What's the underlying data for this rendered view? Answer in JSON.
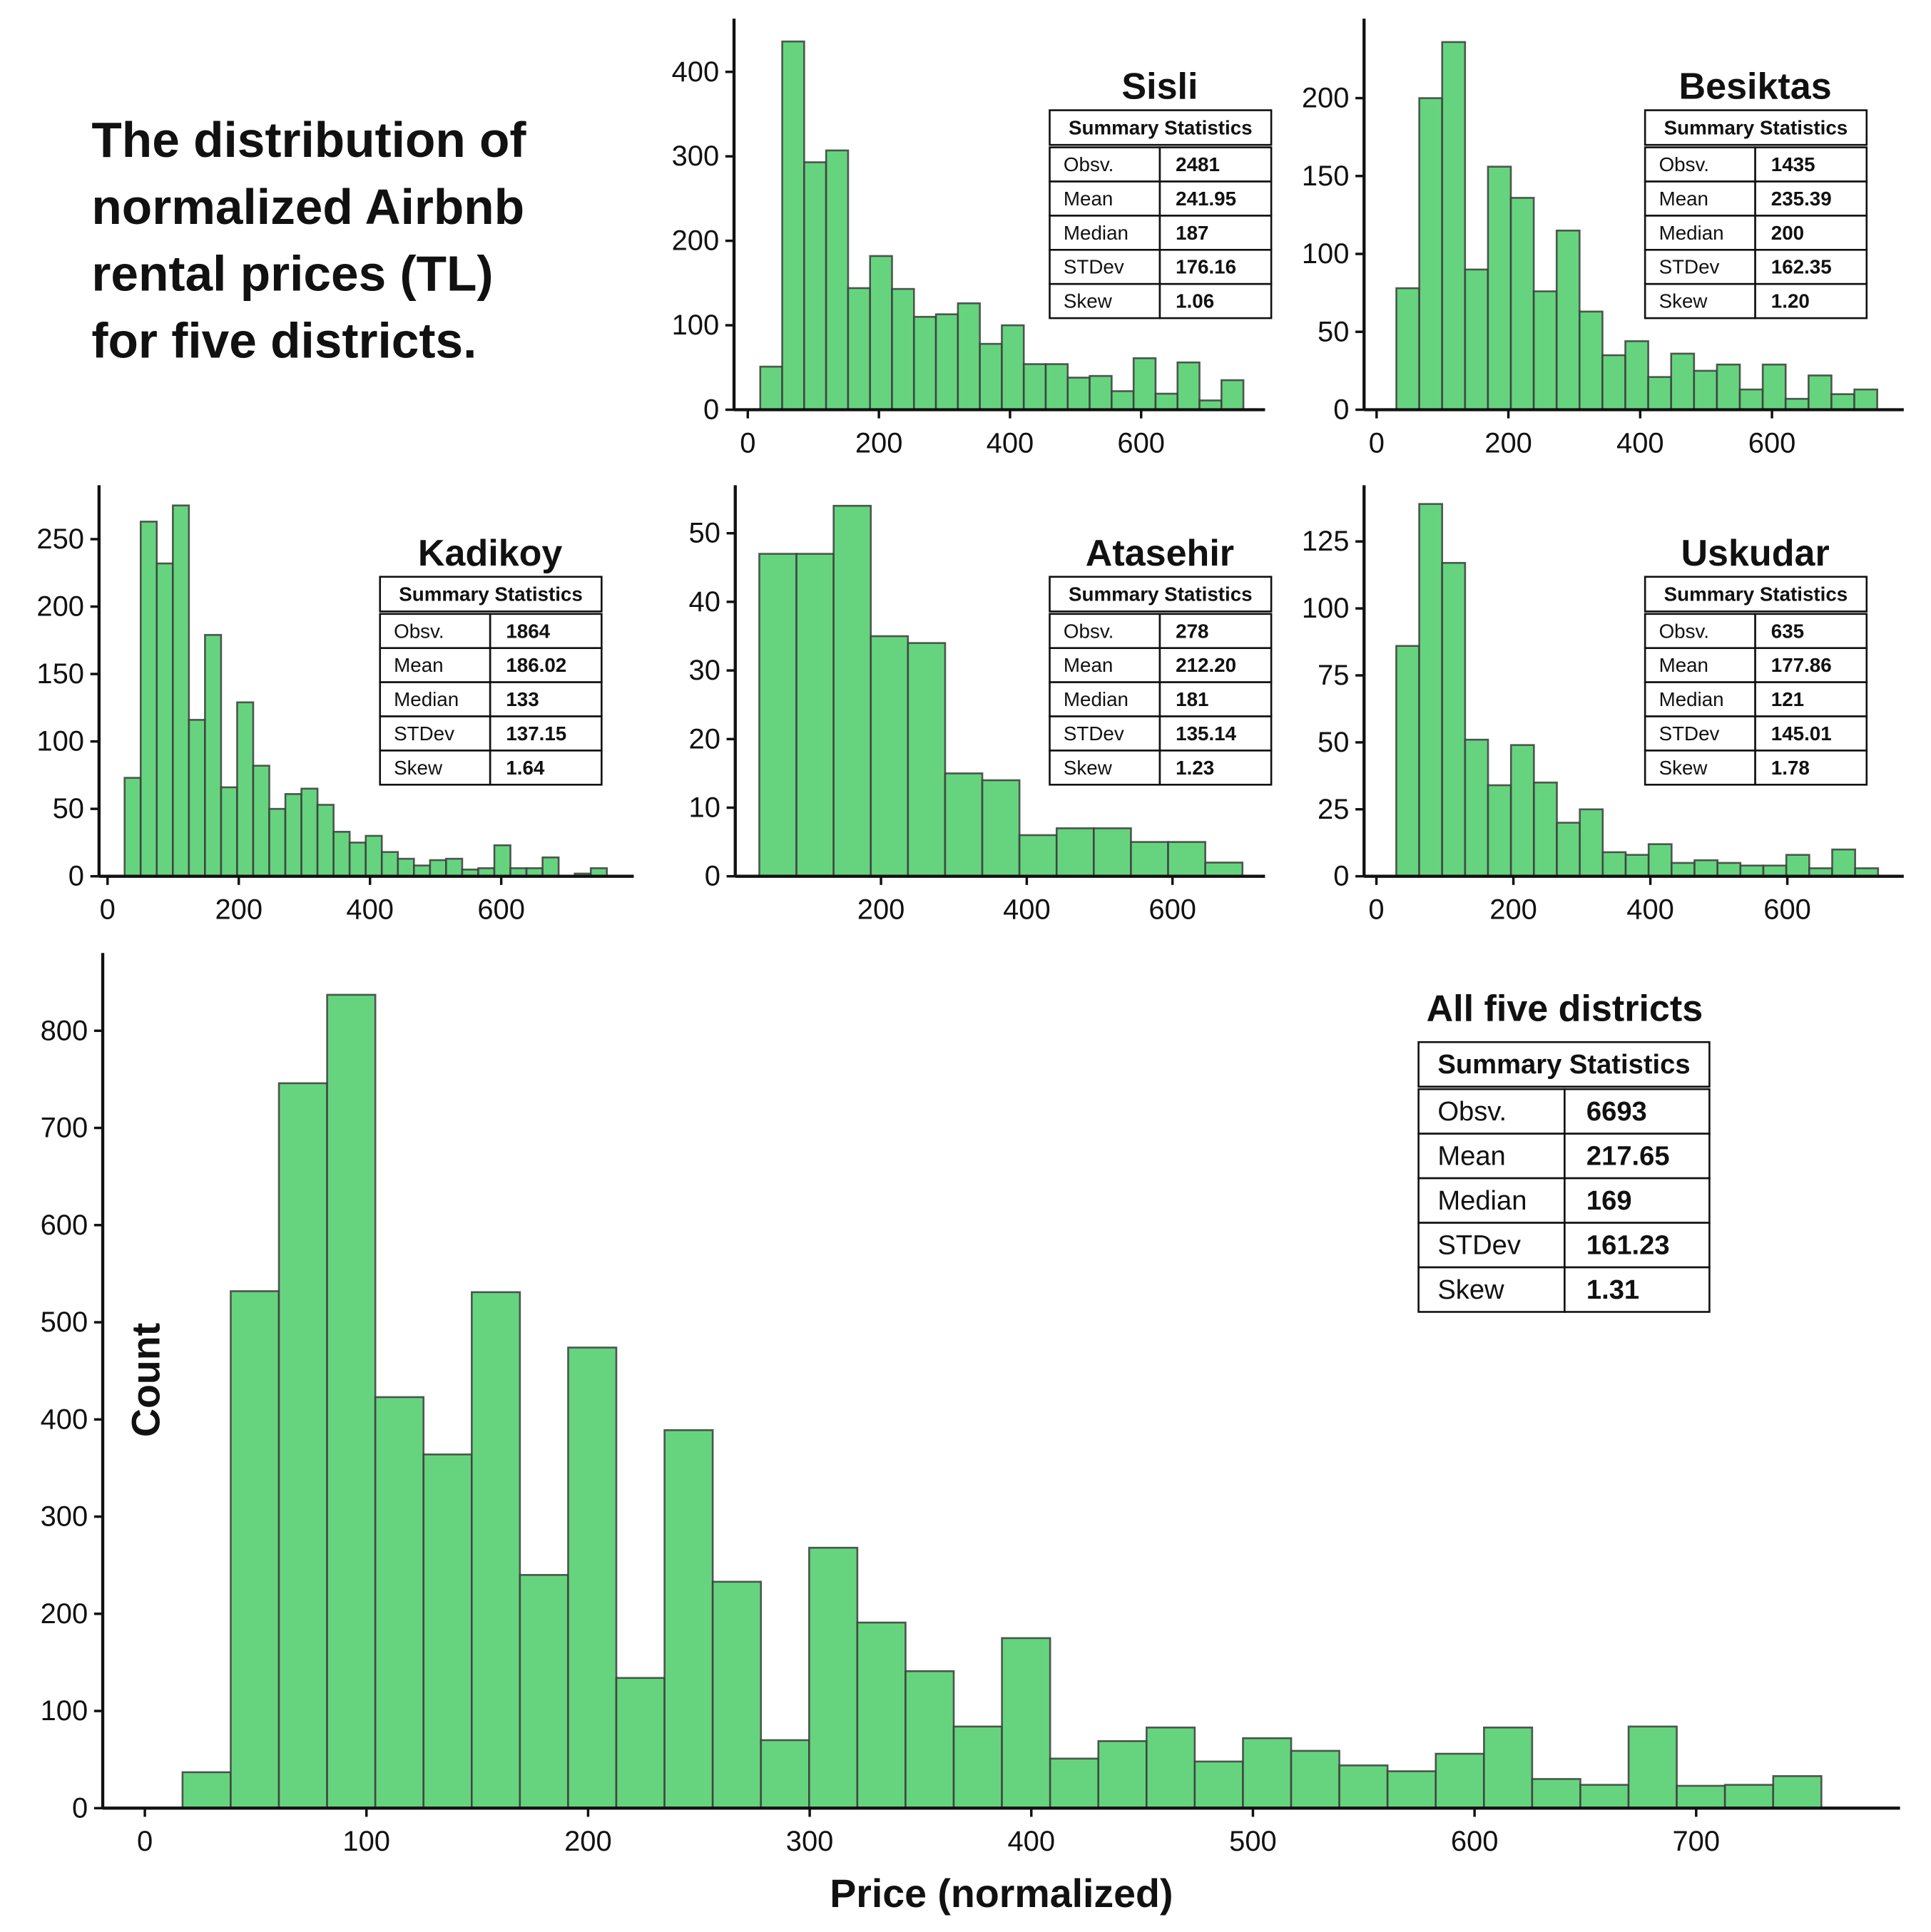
{
  "title": [
    "The distribution of",
    "normalized Airbnb",
    "rental prices (TL)",
    "for five districts."
  ],
  "chart_data": [
    {
      "type": "histogram",
      "title": "Sisli",
      "color": "#66d47f",
      "bins": [
        19,
        52.5,
        86,
        119.5,
        153,
        186.5,
        220,
        253.5,
        287,
        320.5,
        354,
        387.5,
        421,
        454.5,
        488,
        521.5,
        555,
        588.5,
        622,
        655.5,
        689,
        722.5,
        756
      ],
      "values": [
        51,
        436,
        293,
        307,
        144,
        182,
        143,
        110,
        113,
        126,
        78,
        100,
        54,
        54,
        38,
        40,
        22,
        61,
        19,
        56,
        11,
        35
      ],
      "xlim": [
        -21,
        789
      ],
      "ylim": [
        0,
        463
      ],
      "xticks": [
        0,
        200,
        400,
        600
      ],
      "yticks": [
        0,
        100,
        200,
        300,
        400
      ],
      "table": {
        "header": "Summary Statistics",
        "rows": [
          [
            "Obsv.",
            "2481"
          ],
          [
            "Mean",
            "241.95"
          ],
          [
            "Median",
            "187"
          ],
          [
            "STDev",
            "176.16"
          ],
          [
            "Skew",
            "1.06"
          ]
        ]
      }
    },
    {
      "type": "histogram",
      "title": "Besiktas",
      "color": "#66d47f",
      "bins": [
        30,
        64.75,
        99.5,
        134.25,
        169,
        203.75,
        238.5,
        273.25,
        308,
        342.75,
        377.5,
        412.25,
        447,
        481.75,
        516.5,
        551.25,
        586,
        620.75,
        655.5,
        690.25,
        725,
        759.75
      ],
      "values": [
        78,
        200,
        236,
        90,
        156,
        136,
        76,
        115,
        63,
        35,
        44,
        21,
        36,
        25,
        29,
        13,
        29,
        7,
        22,
        10,
        13
      ],
      "xlim": [
        -19,
        800
      ],
      "ylim": [
        0,
        251
      ],
      "xticks": [
        0,
        200,
        400,
        600
      ],
      "yticks": [
        0,
        50,
        100,
        150,
        200
      ],
      "table": {
        "header": "Summary Statistics",
        "rows": [
          [
            "Obsv.",
            "1435"
          ],
          [
            "Mean",
            "235.39"
          ],
          [
            "Median",
            "200"
          ],
          [
            "STDev",
            "162.35"
          ],
          [
            "Skew",
            "1.20"
          ]
        ]
      }
    },
    {
      "type": "histogram",
      "title": "Kadikoy",
      "color": "#66d47f",
      "bins": [
        26,
        50.5,
        75,
        99.5,
        124,
        148.5,
        173,
        197.5,
        222,
        246.5,
        271,
        295.5,
        320,
        344.5,
        369,
        393.5,
        418,
        442.5,
        467,
        491.5,
        516,
        540.5,
        565,
        589.5,
        614,
        638.5,
        663,
        687.5,
        712,
        736.5,
        761
      ],
      "values": [
        73,
        263,
        232,
        275,
        116,
        179,
        66,
        129,
        82,
        50,
        61,
        65,
        53,
        33,
        25,
        30,
        18,
        13,
        8,
        12,
        13,
        5,
        6,
        23,
        6,
        6,
        14,
        0,
        2,
        6
      ],
      "xlim": [
        -13,
        802
      ],
      "ylim": [
        0,
        290
      ],
      "xticks": [
        0,
        200,
        400,
        600
      ],
      "yticks": [
        0,
        50,
        100,
        150,
        200,
        250
      ],
      "table": {
        "header": "Summary Statistics",
        "rows": [
          [
            "Obsv.",
            "1864"
          ],
          [
            "Mean",
            "186.02"
          ],
          [
            "Median",
            "133"
          ],
          [
            "STDev",
            "137.15"
          ],
          [
            "Skew",
            "1.64"
          ]
        ]
      }
    },
    {
      "type": "histogram",
      "title": "Atasehir",
      "color": "#66d47f",
      "bins": [
        33,
        84,
        135,
        186,
        237,
        288,
        339,
        390,
        441,
        492,
        543,
        594,
        645,
        696
      ],
      "values": [
        47,
        47,
        54,
        35,
        34,
        15,
        14,
        6,
        7,
        7,
        5,
        5,
        2
      ],
      "xlim": [
        0,
        727
      ],
      "ylim": [
        0,
        57
      ],
      "xticks": [
        200,
        400,
        600
      ],
      "yticks": [
        0,
        10,
        20,
        30,
        40,
        50
      ],
      "table": {
        "header": "Summary Statistics",
        "rows": [
          [
            "Obsv.",
            "278"
          ],
          [
            "Mean",
            "212.20"
          ],
          [
            "Median",
            "181"
          ],
          [
            "STDev",
            "135.14"
          ],
          [
            "Skew",
            "1.23"
          ]
        ]
      }
    },
    {
      "type": "histogram",
      "title": "Uskudar",
      "color": "#66d47f",
      "bins": [
        29,
        62.5,
        96,
        129.5,
        163,
        196.5,
        230,
        263.5,
        297,
        330.5,
        364,
        397.5,
        431,
        464.5,
        498,
        531.5,
        565,
        598.5,
        632,
        665.5,
        699,
        732.5
      ],
      "values": [
        86,
        139,
        117,
        51,
        34,
        49,
        35,
        20,
        25,
        9,
        8,
        12,
        5,
        6,
        5,
        4,
        4,
        8,
        3,
        10,
        3
      ],
      "xlim": [
        -18,
        770
      ],
      "ylim": [
        0,
        146
      ],
      "xticks": [
        0,
        200,
        400,
        600
      ],
      "yticks": [
        0,
        25,
        50,
        75,
        100,
        125
      ],
      "table": {
        "header": "Summary Statistics",
        "rows": [
          [
            "Obsv.",
            "635"
          ],
          [
            "Mean",
            "177.86"
          ],
          [
            "Median",
            "121"
          ],
          [
            "STDev",
            "145.01"
          ],
          [
            "Skew",
            "1.78"
          ]
        ]
      }
    },
    {
      "type": "histogram",
      "title": "All five districts",
      "color": "#66d47f",
      "xlabel": "Price (normalized)",
      "ylabel": "Count",
      "bins": [
        17,
        38.75,
        60.5,
        82.25,
        104,
        125.75,
        147.5,
        169.25,
        191,
        212.75,
        234.5,
        256.25,
        278,
        299.75,
        321.5,
        343.25,
        365,
        386.75,
        408.5,
        430.25,
        452,
        473.75,
        495.5,
        517.25,
        539,
        560.75,
        582.5,
        604.25,
        626,
        647.75,
        669.5,
        691.25,
        713,
        734.75,
        756.5
      ],
      "values": [
        37,
        532,
        746,
        837,
        423,
        364,
        531,
        240,
        474,
        134,
        389,
        233,
        70,
        268,
        191,
        141,
        84,
        175,
        51,
        69,
        83,
        48,
        72,
        59,
        44,
        38,
        56,
        83,
        30,
        24,
        84,
        23,
        24,
        33
      ],
      "xlim": [
        -19,
        792
      ],
      "ylim": [
        0,
        880
      ],
      "xticks": [
        0,
        100,
        200,
        300,
        400,
        500,
        600,
        700
      ],
      "yticks": [
        0,
        100,
        200,
        300,
        400,
        500,
        600,
        700,
        800
      ],
      "table": {
        "header": "Summary Statistics",
        "rows": [
          [
            "Obsv.",
            "6693"
          ],
          [
            "Mean",
            "217.65"
          ],
          [
            "Median",
            "169"
          ],
          [
            "STDev",
            "161.23"
          ],
          [
            "Skew",
            "1.31"
          ]
        ]
      }
    }
  ]
}
